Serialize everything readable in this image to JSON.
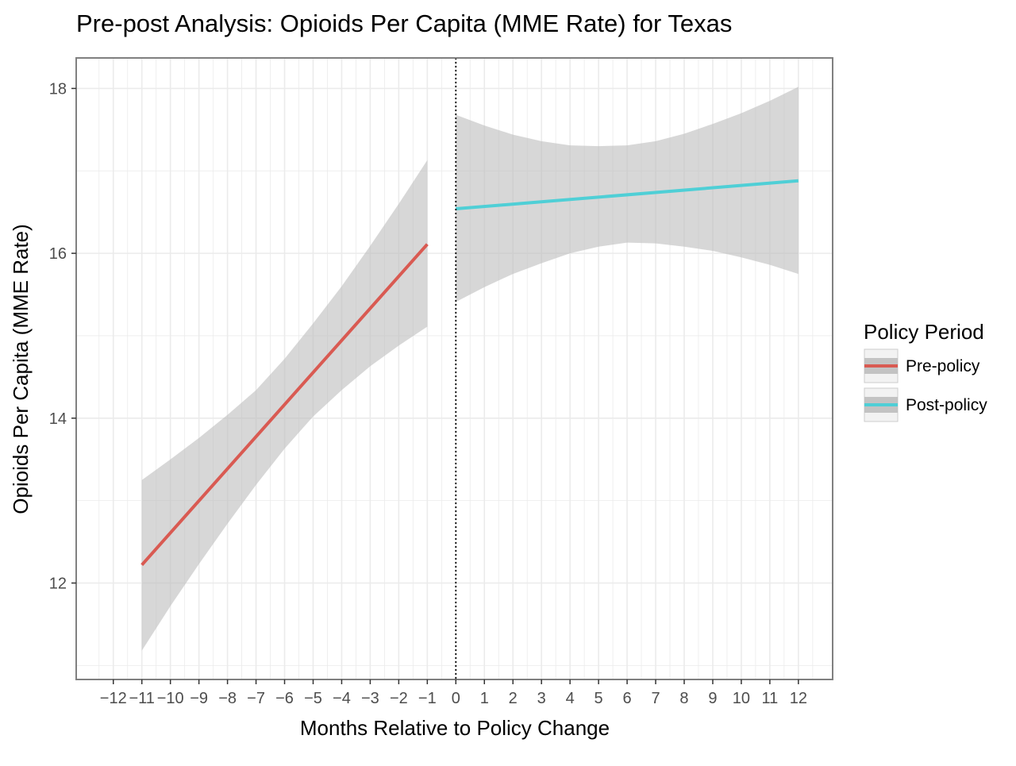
{
  "chart_data": {
    "type": "line",
    "title": "Pre-post Analysis: Opioids Per Capita (MME Rate) for Texas",
    "xlabel": "Months Relative to Policy Change",
    "ylabel": "Opioids Per Capita (MME Rate)",
    "xlim": [
      -13.3,
      13.2
    ],
    "ylim": [
      10.83,
      18.37
    ],
    "x_ticks": [
      -12,
      -11,
      -10,
      -9,
      -8,
      -7,
      -6,
      -5,
      -4,
      -3,
      -2,
      -1,
      0,
      1,
      2,
      3,
      4,
      5,
      6,
      7,
      8,
      9,
      10,
      11,
      12
    ],
    "x_tick_labels": [
      "−12",
      "−11",
      "−10",
      "−9",
      "−8",
      "−7",
      "−6",
      "−5",
      "−4",
      "−3",
      "−2",
      "−1",
      "0",
      "1",
      "2",
      "3",
      "4",
      "5",
      "6",
      "7",
      "8",
      "9",
      "10",
      "11",
      "12"
    ],
    "y_ticks": [
      12,
      14,
      16,
      18
    ],
    "y_tick_labels": [
      "12",
      "14",
      "16",
      "18"
    ],
    "y_minor_ticks": [
      11,
      13,
      15,
      17
    ],
    "grid": true,
    "vline": {
      "x": 0,
      "style": "dotted"
    },
    "legend": {
      "title": "Policy Period",
      "position": "right"
    },
    "series": [
      {
        "name": "Pre-policy",
        "color": "#d95a52",
        "x": [
          -11,
          -1
        ],
        "y": [
          12.22,
          16.11
        ],
        "ci_x": [
          -11,
          -10,
          -9,
          -8,
          -7,
          -6,
          -5,
          -4,
          -3,
          -2,
          -1
        ],
        "ci_lower": [
          11.18,
          11.72,
          12.23,
          12.72,
          13.19,
          13.63,
          14.02,
          14.34,
          14.63,
          14.88,
          15.11
        ],
        "ci_upper": [
          13.25,
          13.5,
          13.76,
          14.04,
          14.34,
          14.72,
          15.15,
          15.6,
          16.09,
          16.6,
          17.13
        ]
      },
      {
        "name": "Post-policy",
        "color": "#4fcfd6",
        "x": [
          0,
          12
        ],
        "y": [
          16.54,
          16.88
        ],
        "ci_x": [
          0,
          1,
          2,
          3,
          4,
          5,
          6,
          7,
          8,
          9,
          10,
          11,
          12
        ],
        "ci_lower": [
          15.41,
          15.59,
          15.75,
          15.88,
          16.0,
          16.08,
          16.13,
          16.12,
          16.08,
          16.03,
          15.95,
          15.86,
          15.75
        ],
        "ci_upper": [
          17.68,
          17.55,
          17.44,
          17.36,
          17.31,
          17.3,
          17.31,
          17.36,
          17.45,
          17.57,
          17.7,
          17.85,
          18.02
        ]
      }
    ],
    "colors": {
      "ci_band": "#bebebe",
      "grid": "#ebebeb",
      "panel_border": "#808080",
      "text": "#4d4d4d"
    }
  }
}
